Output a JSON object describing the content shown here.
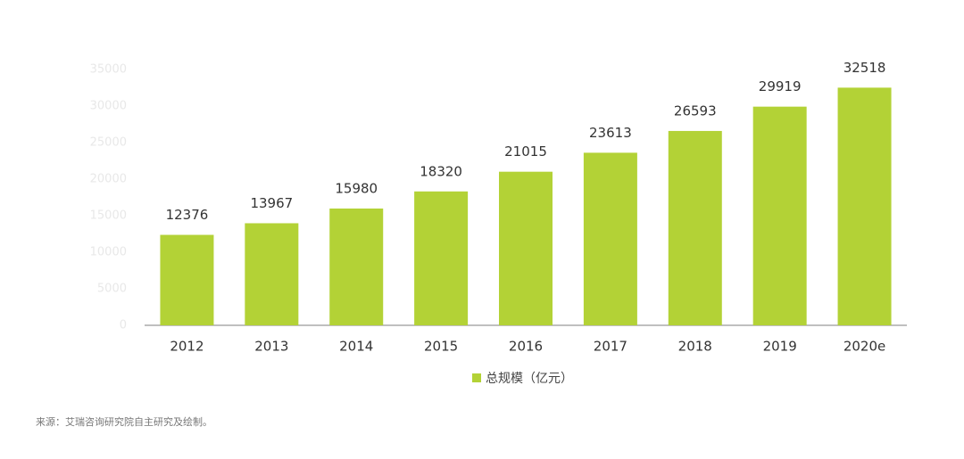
{
  "chart_data": {
    "type": "bar",
    "categories": [
      "2012",
      "2013",
      "2014",
      "2015",
      "2016",
      "2017",
      "2018",
      "2019",
      "2020e"
    ],
    "series": [
      {
        "name": "总规模（亿元）",
        "color": "#b3d236",
        "values": [
          12376,
          13967,
          15980,
          18320,
          21015,
          23613,
          26593,
          29919,
          32518
        ]
      }
    ],
    "ylim": [
      0,
      35000
    ],
    "yticks": [
      0,
      5000,
      10000,
      15000,
      20000,
      25000,
      30000,
      35000
    ]
  },
  "source": "来源：艾瑞咨询研究院自主研究及绘制。"
}
